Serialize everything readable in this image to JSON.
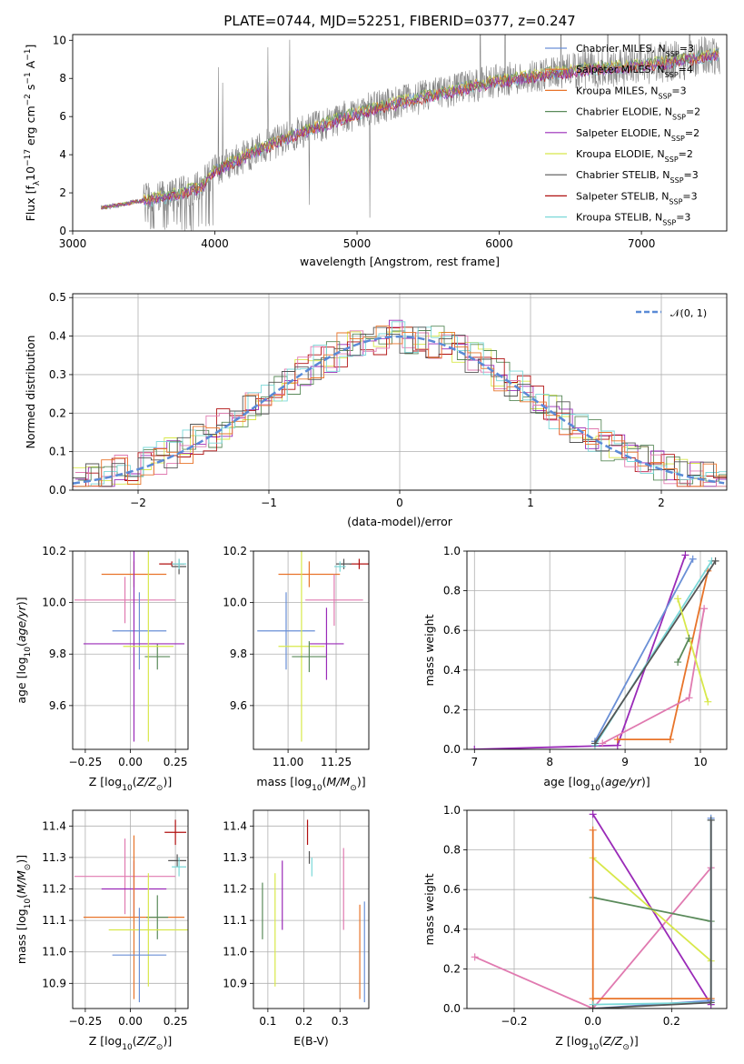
{
  "figure": {
    "title": "PLATE=0744, MJD=52251, FIBERID=0377, z=0.247"
  },
  "colors": {
    "chabrier_miles": "#6a8fd6",
    "salpeter_miles": "#e8742a",
    "kroupa_miles": "#e8742a",
    "chabrier_elodie": "#5a8a5a",
    "salpeter_elodie": "#9a2ab8",
    "kroupa_elodie": "#d8e84a",
    "chabrier_stelib": "#555555",
    "salpeter_stelib": "#b01010",
    "kroupa_stelib": "#7ad8d8",
    "pink": "#e07ab0",
    "gauss": "#5a8ad6",
    "data_gray": "#808080"
  },
  "chart_data": [
    {
      "id": "spectrum",
      "type": "line",
      "title": "PLATE=0744, MJD=52251, FIBERID=0377, z=0.247",
      "xlabel": "wavelength [Angstrom, rest frame]",
      "ylabel": "Flux [f_λ10^-17 erg cm^-2 s^-1 A^-1]",
      "xlim": [
        3000,
        7600
      ],
      "ylim": [
        0,
        10.3
      ],
      "xticks": [
        3000,
        4000,
        5000,
        6000,
        7000
      ],
      "yticks": [
        0,
        2,
        4,
        6,
        8,
        10
      ],
      "legend_position": "right",
      "legend": [
        {
          "base": "Chabrier MILES, N",
          "sub": "SSP",
          "tail": "=3"
        },
        {
          "base": "Salpeter MILES, N",
          "sub": "SSP",
          "tail": "=4"
        },
        {
          "base": "Kroupa MILES, N",
          "sub": "SSP",
          "tail": "=3"
        },
        {
          "base": "Chabrier ELODIE, N",
          "sub": "SSP",
          "tail": "=2"
        },
        {
          "base": "Salpeter ELODIE, N",
          "sub": "SSP",
          "tail": "=2"
        },
        {
          "base": "Kroupa ELODIE, N",
          "sub": "SSP",
          "tail": "=2"
        },
        {
          "base": "Chabrier STELIB, N",
          "sub": "SSP",
          "tail": "=3"
        },
        {
          "base": "Salpeter STELIB, N",
          "sub": "SSP",
          "tail": "=3"
        },
        {
          "base": "Kroupa STELIB, N",
          "sub": "SSP",
          "tail": "=3"
        }
      ],
      "continuum": {
        "x": [
          3200,
          3500,
          3700,
          3900,
          4000,
          4200,
          4500,
          4800,
          5000,
          5200,
          5500,
          5800,
          6000,
          6300,
          6600,
          7000,
          7300,
          7550
        ],
        "y": [
          1.2,
          1.6,
          1.9,
          2.3,
          3.2,
          3.9,
          4.9,
          5.7,
          6.2,
          6.6,
          7.1,
          7.6,
          7.9,
          8.2,
          8.5,
          8.7,
          9.0,
          9.3
        ]
      }
    },
    {
      "id": "residuals",
      "type": "step",
      "xlabel": "(data-model)/error",
      "ylabel": "Normed distribution",
      "xlim": [
        -2.5,
        2.5
      ],
      "ylim": [
        0,
        0.51
      ],
      "xticks": [
        -2,
        -1,
        0,
        1,
        2
      ],
      "yticks": [
        0.0,
        0.1,
        0.2,
        0.3,
        0.4,
        0.5
      ],
      "legend_position": "top-right",
      "legend": [
        "𝒩(0, 1)"
      ],
      "gaussian": {
        "mean": 0,
        "sigma": 1
      }
    },
    {
      "id": "age_vs_Z",
      "type": "errorbar",
      "xlabel": "Z [log10(Z/Z⊙)]",
      "ylabel": "age [log10(age/yr)]",
      "xlim": [
        -0.32,
        0.32
      ],
      "ylim": [
        9.43,
        10.2
      ],
      "xticks": [
        -0.25,
        0.0,
        0.25
      ],
      "yticks": [
        9.6,
        9.8,
        10.0,
        10.2
      ],
      "points": [
        {
          "c": "salpeter_stelib",
          "x": 0.23,
          "y": 10.15,
          "xerr": 0.07,
          "yerr": 0.01
        },
        {
          "c": "chabrier_stelib",
          "x": 0.27,
          "y": 10.14,
          "xerr": 0.04,
          "yerr": 0.03
        },
        {
          "c": "kroupa_stelib",
          "x": 0.27,
          "y": 10.15,
          "xerr": 0.04,
          "yerr": 0.02
        },
        {
          "c": "salpeter_miles",
          "x": 0.02,
          "y": 10.11,
          "xerr": 0.18,
          "yerr": 0.05
        },
        {
          "c": "pink",
          "x": -0.03,
          "y": 10.01,
          "xerr": 0.28,
          "yerr": 0.09
        },
        {
          "c": "chabrier_miles",
          "x": 0.05,
          "y": 9.89,
          "xerr": 0.15,
          "yerr": 0.15
        },
        {
          "c": "chabrier_elodie",
          "x": 0.15,
          "y": 9.79,
          "xerr": 0.07,
          "yerr": 0.05
        },
        {
          "c": "salpeter_elodie",
          "x": 0.02,
          "y": 9.84,
          "xerr": 0.28,
          "yerr": 0.38
        },
        {
          "c": "kroupa_elodie",
          "x": 0.1,
          "y": 9.83,
          "xerr": 0.14,
          "yerr": 0.37
        }
      ]
    },
    {
      "id": "age_vs_mass",
      "type": "errorbar",
      "xlabel": "mass [log10(M/M⊙)]",
      "ylabel": "",
      "xlim": [
        10.82,
        11.42
      ],
      "ylim": [
        9.43,
        10.2
      ],
      "xticks": [
        11.0,
        11.25
      ],
      "yticks": [
        9.6,
        9.8,
        10.0,
        10.2
      ],
      "points": [
        {
          "c": "salpeter_stelib",
          "x": 11.37,
          "y": 10.15,
          "xerr": 0.05,
          "yerr": 0.02
        },
        {
          "c": "chabrier_stelib",
          "x": 11.29,
          "y": 10.15,
          "xerr": 0.04,
          "yerr": 0.02
        },
        {
          "c": "kroupa_stelib",
          "x": 11.27,
          "y": 10.14,
          "xerr": 0.03,
          "yerr": 0.02
        },
        {
          "c": "salpeter_miles",
          "x": 11.11,
          "y": 10.11,
          "xerr": 0.16,
          "yerr": 0.05
        },
        {
          "c": "pink",
          "x": 11.24,
          "y": 10.01,
          "xerr": 0.15,
          "yerr": 0.1
        },
        {
          "c": "chabrier_miles",
          "x": 10.99,
          "y": 9.89,
          "xerr": 0.15,
          "yerr": 0.15
        },
        {
          "c": "salpeter_elodie",
          "x": 11.2,
          "y": 9.84,
          "xerr": 0.09,
          "yerr": 0.14
        },
        {
          "c": "kroupa_elodie",
          "x": 11.07,
          "y": 9.83,
          "xerr": 0.12,
          "yerr": 0.37
        },
        {
          "c": "chabrier_elodie",
          "x": 11.11,
          "y": 9.79,
          "xerr": 0.09,
          "yerr": 0.06
        }
      ]
    },
    {
      "id": "weight_vs_age",
      "type": "line",
      "xlabel": "age [log10(age/yr)]",
      "ylabel": "mass weight",
      "xlim": [
        6.9,
        10.35
      ],
      "ylim": [
        0,
        1
      ],
      "xticks": [
        7,
        8,
        9,
        10
      ],
      "yticks": [
        0.0,
        0.2,
        0.4,
        0.6,
        0.8,
        1.0
      ],
      "series": [
        {
          "c": "salpeter_elodie",
          "x": [
            7.0,
            8.9,
            9.8
          ],
          "y": [
            0.0,
            0.02,
            0.98
          ]
        },
        {
          "c": "chabrier_miles",
          "x": [
            8.6,
            9.9
          ],
          "y": [
            0.04,
            0.96
          ]
        },
        {
          "c": "salpeter_miles",
          "x": [
            8.9,
            9.6,
            10.1
          ],
          "y": [
            0.05,
            0.05,
            0.9
          ]
        },
        {
          "c": "kroupa_stelib",
          "x": [
            8.6,
            10.15
          ],
          "y": [
            0.02,
            0.95
          ]
        },
        {
          "c": "chabrier_stelib",
          "x": [
            8.6,
            10.2
          ],
          "y": [
            0.03,
            0.95
          ]
        },
        {
          "c": "pink",
          "x": [
            8.7,
            9.85,
            10.05
          ],
          "y": [
            0.03,
            0.26,
            0.71
          ]
        },
        {
          "c": "kroupa_elodie",
          "x": [
            9.7,
            10.1
          ],
          "y": [
            0.76,
            0.24
          ]
        },
        {
          "c": "chabrier_elodie",
          "x": [
            9.7,
            9.85
          ],
          "y": [
            0.44,
            0.56
          ]
        }
      ]
    },
    {
      "id": "mass_vs_Z",
      "type": "errorbar",
      "xlabel": "Z [log10(Z/Z⊙)]",
      "ylabel": "mass [log10(M/M⊙)]",
      "xlim": [
        -0.32,
        0.32
      ],
      "ylim": [
        10.82,
        11.45
      ],
      "xticks": [
        -0.25,
        0.0,
        0.25
      ],
      "yticks": [
        10.9,
        11.0,
        11.1,
        11.2,
        11.3,
        11.4
      ],
      "points": [
        {
          "c": "salpeter_stelib",
          "x": 0.25,
          "y": 11.38,
          "xerr": 0.06,
          "yerr": 0.04
        },
        {
          "c": "chabrier_stelib",
          "x": 0.26,
          "y": 11.29,
          "xerr": 0.05,
          "yerr": 0.02
        },
        {
          "c": "kroupa_stelib",
          "x": 0.27,
          "y": 11.27,
          "xerr": 0.04,
          "yerr": 0.03
        },
        {
          "c": "pink",
          "x": -0.03,
          "y": 11.24,
          "xerr": 0.28,
          "yerr": 0.12
        },
        {
          "c": "salpeter_elodie",
          "x": 0.02,
          "y": 11.2,
          "xerr": 0.18,
          "yerr": 0.09
        },
        {
          "c": "salpeter_miles",
          "x": 0.02,
          "y": 11.11,
          "xerr": 0.28,
          "yerr": 0.26
        },
        {
          "c": "chabrier_elodie",
          "x": 0.15,
          "y": 11.11,
          "xerr": 0.06,
          "yerr": 0.07
        },
        {
          "c": "kroupa_elodie",
          "x": 0.1,
          "y": 11.07,
          "xerr": 0.22,
          "yerr": 0.18
        },
        {
          "c": "chabrier_miles",
          "x": 0.05,
          "y": 10.99,
          "xerr": 0.15,
          "yerr": 0.15
        }
      ]
    },
    {
      "id": "mass_vs_ebv",
      "type": "errorbar",
      "xlabel": "E(B-V)",
      "ylabel": "",
      "xlim": [
        0.06,
        0.38
      ],
      "ylim": [
        10.82,
        11.45
      ],
      "xticks": [
        0.1,
        0.2,
        0.3
      ],
      "yticks": [
        10.9,
        11.0,
        11.1,
        11.2,
        11.3,
        11.4
      ],
      "points": [
        {
          "c": "salpeter_stelib",
          "x": 0.21,
          "y": 11.38,
          "xerr": 0,
          "yerr": 0.04
        },
        {
          "c": "chabrier_stelib",
          "x": 0.215,
          "y": 11.3,
          "xerr": 0,
          "yerr": 0.02
        },
        {
          "c": "kroupa_stelib",
          "x": 0.222,
          "y": 11.27,
          "xerr": 0,
          "yerr": 0.03
        },
        {
          "c": "pink",
          "x": 0.31,
          "y": 11.2,
          "xerr": 0,
          "yerr": 0.13
        },
        {
          "c": "salpeter_elodie",
          "x": 0.14,
          "y": 11.18,
          "xerr": 0,
          "yerr": 0.11
        },
        {
          "c": "chabrier_elodie",
          "x": 0.085,
          "y": 11.13,
          "xerr": 0,
          "yerr": 0.09
        },
        {
          "c": "kroupa_elodie",
          "x": 0.12,
          "y": 11.07,
          "xerr": 0,
          "yerr": 0.18
        },
        {
          "c": "salpeter_miles",
          "x": 0.355,
          "y": 11.0,
          "xerr": 0,
          "yerr": 0.15
        },
        {
          "c": "chabrier_miles",
          "x": 0.368,
          "y": 11.0,
          "xerr": 0,
          "yerr": 0.16
        }
      ]
    },
    {
      "id": "weight_vs_Z",
      "type": "line",
      "xlabel": "Z [log10(Z/Z⊙)]",
      "ylabel": "mass weight",
      "xlim": [
        -0.32,
        0.34
      ],
      "ylim": [
        0,
        1
      ],
      "xticks": [
        -0.2,
        0.0,
        0.2
      ],
      "yticks": [
        0.0,
        0.2,
        0.4,
        0.6,
        0.8,
        1.0
      ],
      "series": [
        {
          "c": "pink",
          "x": [
            -0.3,
            0.0,
            0.3
          ],
          "y": [
            0.26,
            0.0,
            0.71
          ]
        },
        {
          "c": "salpeter_elodie",
          "x": [
            0.0,
            0.3
          ],
          "y": [
            0.98,
            0.02
          ]
        },
        {
          "c": "kroupa_elodie",
          "x": [
            0.0,
            0.3
          ],
          "y": [
            0.76,
            0.24
          ]
        },
        {
          "c": "chabrier_elodie",
          "x": [
            0.0,
            0.3
          ],
          "y": [
            0.56,
            0.44
          ]
        },
        {
          "c": "salpeter_miles",
          "x": [
            0.0,
            0.0,
            0.0,
            0.3
          ],
          "y": [
            0.9,
            0.0,
            0.05,
            0.05
          ]
        },
        {
          "c": "chabrier_miles",
          "x": [
            0.0,
            0.3,
            0.3
          ],
          "y": [
            0.0,
            0.04,
            0.96
          ]
        },
        {
          "c": "kroupa_stelib",
          "x": [
            0.0,
            0.3,
            0.3
          ],
          "y": [
            0.02,
            0.03,
            0.95
          ]
        },
        {
          "c": "chabrier_stelib",
          "x": [
            0.0,
            0.3,
            0.3
          ],
          "y": [
            0.0,
            0.03,
            0.95
          ]
        }
      ]
    }
  ]
}
